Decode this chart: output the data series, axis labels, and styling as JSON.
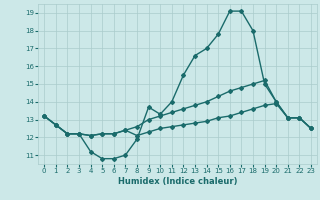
{
  "xlabel": "Humidex (Indice chaleur)",
  "background_color": "#cce8e8",
  "grid_color": "#aacccc",
  "line_color": "#1a6b6b",
  "xlim": [
    -0.5,
    23.5
  ],
  "ylim": [
    10.5,
    19.5
  ],
  "xticks": [
    0,
    1,
    2,
    3,
    4,
    5,
    6,
    7,
    8,
    9,
    10,
    11,
    12,
    13,
    14,
    15,
    16,
    17,
    18,
    19,
    20,
    21,
    22,
    23
  ],
  "yticks": [
    11,
    12,
    13,
    14,
    15,
    16,
    17,
    18,
    19
  ],
  "line1_x": [
    0,
    1,
    2,
    3,
    4,
    5,
    6,
    7,
    8,
    9,
    10,
    11,
    12,
    13,
    14,
    15,
    16,
    17,
    18,
    19,
    20,
    21,
    22,
    23
  ],
  "line1_y": [
    13.2,
    12.7,
    12.2,
    12.2,
    11.2,
    10.8,
    10.8,
    11.0,
    11.9,
    13.7,
    13.3,
    14.0,
    15.5,
    16.6,
    17.0,
    17.8,
    19.1,
    19.1,
    18.0,
    15.0,
    14.0,
    13.1,
    13.1,
    12.5
  ],
  "line2_x": [
    0,
    1,
    2,
    3,
    4,
    5,
    6,
    7,
    8,
    9,
    10,
    11,
    12,
    13,
    14,
    15,
    16,
    17,
    18,
    19,
    20,
    21,
    22,
    23
  ],
  "line2_y": [
    13.2,
    12.7,
    12.2,
    12.2,
    12.1,
    12.2,
    12.2,
    12.4,
    12.6,
    13.0,
    13.2,
    13.4,
    13.6,
    13.8,
    14.0,
    14.3,
    14.6,
    14.8,
    15.0,
    15.2,
    14.0,
    13.1,
    13.1,
    12.5
  ],
  "line3_x": [
    0,
    1,
    2,
    3,
    4,
    5,
    6,
    7,
    8,
    9,
    10,
    11,
    12,
    13,
    14,
    15,
    16,
    17,
    18,
    19,
    20,
    21,
    22,
    23
  ],
  "line3_y": [
    13.2,
    12.7,
    12.2,
    12.2,
    12.1,
    12.2,
    12.2,
    12.4,
    12.1,
    12.3,
    12.5,
    12.6,
    12.7,
    12.8,
    12.9,
    13.1,
    13.2,
    13.4,
    13.6,
    13.8,
    13.9,
    13.1,
    13.1,
    12.5
  ],
  "marker_style": "D",
  "marker_size": 2,
  "line_width": 1.0,
  "tick_fontsize": 5,
  "xlabel_fontsize": 6
}
